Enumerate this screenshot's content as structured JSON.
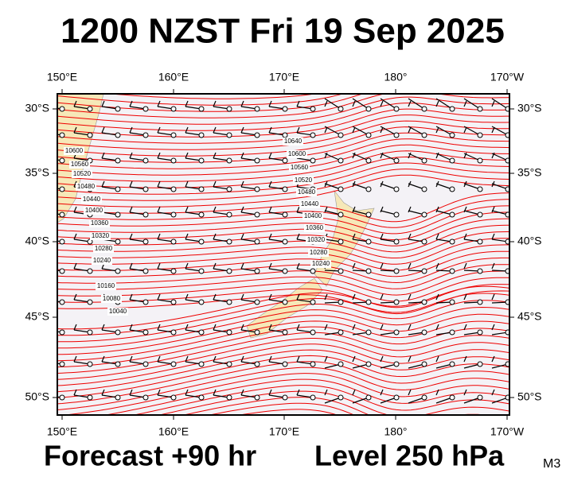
{
  "title": "1200 NZST Fri 19 Sep 2025",
  "footer": {
    "forecast": "Forecast +90 hr",
    "level": "Level 250 hPa",
    "code": "M3"
  },
  "map": {
    "lon_labels": [
      "150°E",
      "160°E",
      "170°E",
      "180°",
      "170°W"
    ],
    "lat_labels": [
      "30°S",
      "35°S",
      "40°S",
      "45°S",
      "50°S"
    ],
    "contour_labels_west": [
      "10600",
      "10560",
      "10520",
      "10480",
      "10440",
      "10400",
      "10360",
      "10320",
      "10280",
      "10240",
      "10160",
      "10080",
      "10040"
    ],
    "contour_labels_central": [
      "10640",
      "10600",
      "10560",
      "10520",
      "10480",
      "10440",
      "10400",
      "10360",
      "10320",
      "10280",
      "10240"
    ]
  }
}
